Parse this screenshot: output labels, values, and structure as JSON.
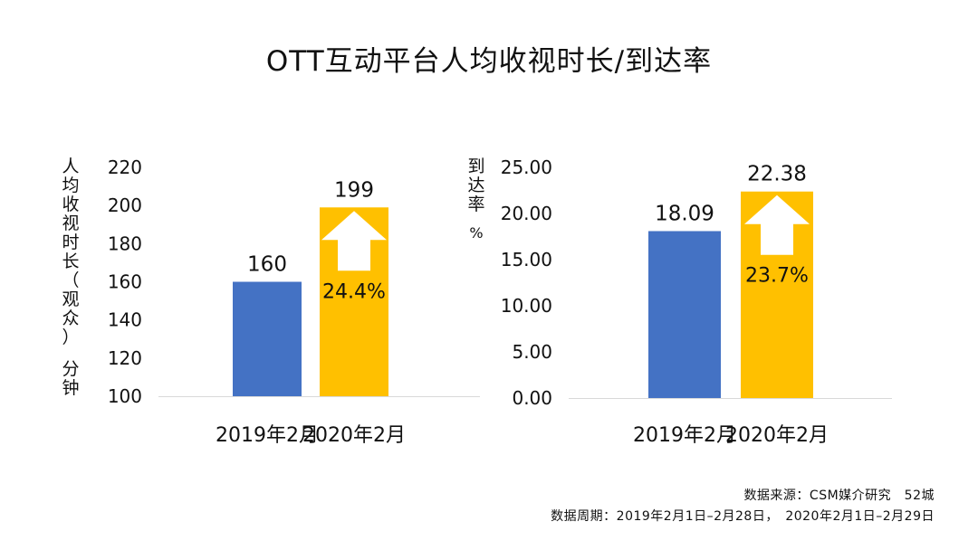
{
  "title": "OTT互动平台人均收视时长/到达率",
  "colors": {
    "series_2019": "#4472C4",
    "series_2020": "#FFC000",
    "axis": "#d9d9d9",
    "arrow": "#ffffff"
  },
  "chart_data": [
    {
      "type": "bar",
      "ylabel_main": "人均收视时长（观众）",
      "ylabel_unit": "分钟",
      "ylim": [
        100,
        220
      ],
      "yticks": [
        "100",
        "120",
        "140",
        "160",
        "180",
        "200",
        "220"
      ],
      "categories": [
        "2019年2月",
        "2020年2月"
      ],
      "values": [
        160,
        199
      ],
      "value_labels": [
        "160",
        "199"
      ],
      "growth_label": "24.4%"
    },
    {
      "type": "bar",
      "ylabel_main": "到达率",
      "ylabel_unit": "%",
      "ylim": [
        0,
        25
      ],
      "yticks": [
        "0.00",
        "5.00",
        "10.00",
        "15.00",
        "20.00",
        "25.00"
      ],
      "categories": [
        "2019年2月",
        "2020年2月"
      ],
      "values": [
        18.09,
        22.38
      ],
      "value_labels": [
        "18.09",
        "22.38"
      ],
      "growth_label": "23.7%"
    }
  ],
  "source_line1": "数据来源：CSM媒介研究　52城",
  "source_line2": "数据周期：2019年2月1日–2月28日，　2020年2月1日–2月29日"
}
